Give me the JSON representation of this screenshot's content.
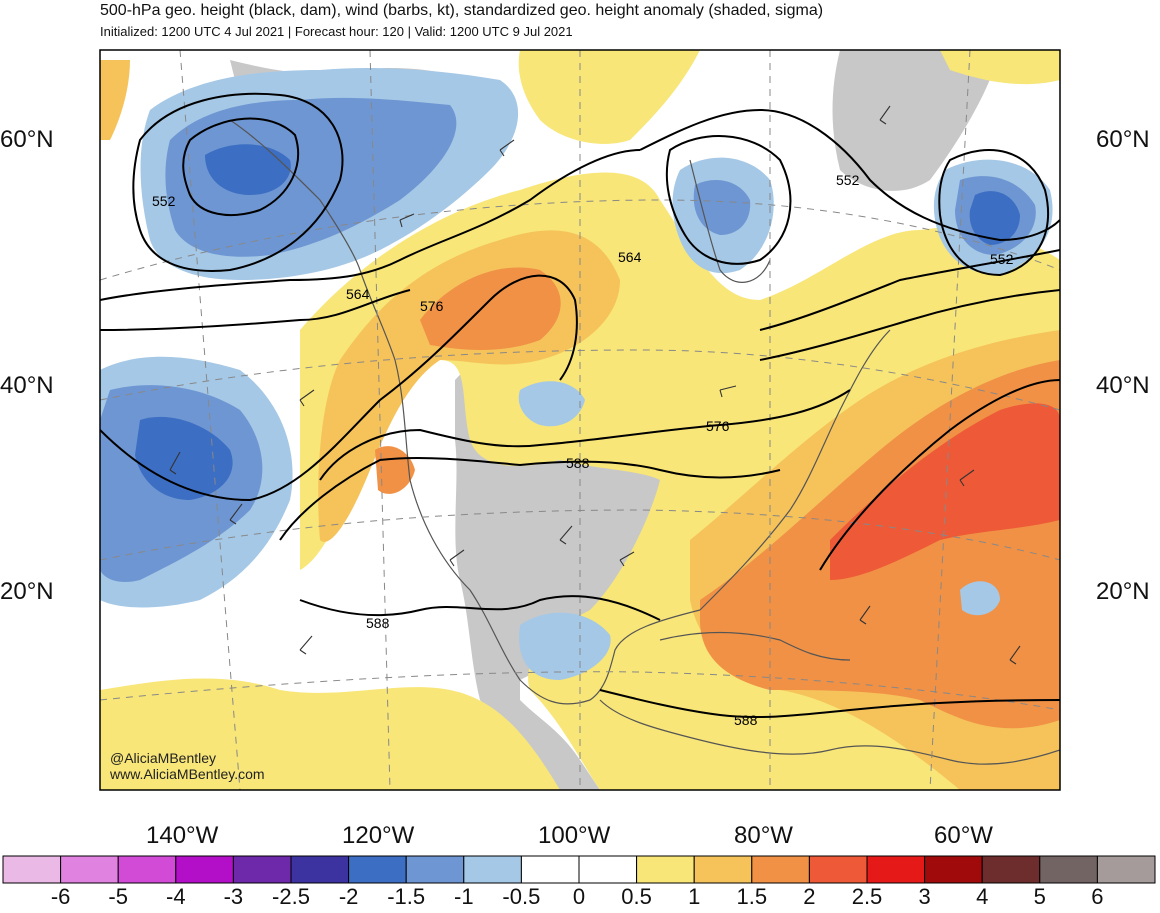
{
  "header": {
    "title": "500-hPa geo. height (black, dam), wind (barbs, kt), standardized geo. height anomaly (shaded, sigma)",
    "subtitle": "Initialized: 1200 UTC 4 Jul 2021 | Forecast hour: 120 | Valid: 1200 UTC 9 Jul 2021"
  },
  "map": {
    "lat_labels_left": [
      "60°N",
      "40°N",
      "20°N"
    ],
    "lat_labels_right": [
      "60°N",
      "40°N",
      "20°N"
    ],
    "lon_labels": [
      "140°W",
      "120°W",
      "100°W",
      "80°W",
      "60°W"
    ],
    "contour_labels": [
      "552",
      "564",
      "576",
      "564",
      "552",
      "552",
      "576",
      "588",
      "588",
      "588"
    ],
    "credit": {
      "handle": "@AliciaMBentley",
      "website": "www.AliciaMBentley.com"
    },
    "colors": {
      "ocean_neutral": "#ffffff",
      "land_neutral": "#c8c8c8",
      "coastline": "#555555",
      "contour": "#000000"
    }
  },
  "colorbar": {
    "ticks": [
      "-6",
      "-5",
      "-4",
      "-3",
      "-2.5",
      "-2",
      "-1.5",
      "-1",
      "-0.5",
      "0",
      "0.5",
      "1",
      "1.5",
      "2",
      "2.5",
      "3",
      "4",
      "5",
      "6"
    ],
    "colors": [
      "#ebb9e6",
      "#e082e0",
      "#d24bd7",
      "#b40fc8",
      "#6e28aa",
      "#3c32a0",
      "#3c6ec3",
      "#6e96d2",
      "#a5c8e6",
      "#ffffff",
      "#ffffff",
      "#f8e678",
      "#f5c35a",
      "#f09146",
      "#ee5a37",
      "#e61919",
      "#a00a0a",
      "#6e2d2d",
      "#736464",
      "#a59b9b"
    ]
  }
}
